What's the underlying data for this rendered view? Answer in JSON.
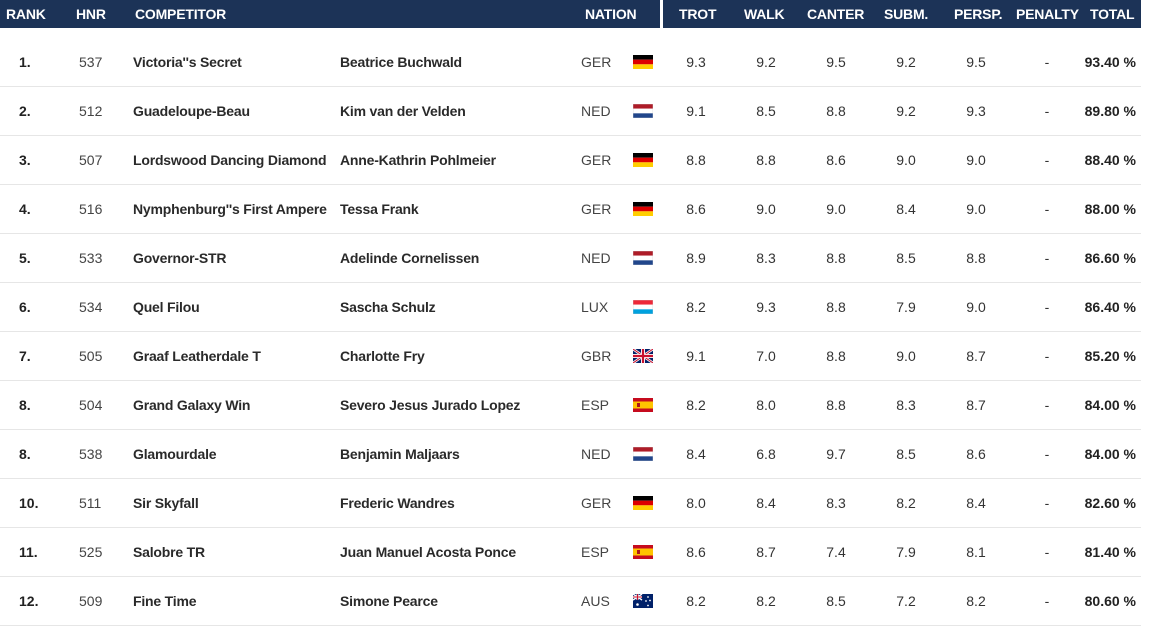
{
  "header": {
    "rank": "RANK",
    "hnr": "HNR",
    "competitor": "COMPETITOR",
    "nation": "NATION",
    "trot": "TROT",
    "walk": "WALK",
    "canter": "CANTER",
    "subm": "SUBM.",
    "persp": "PERSP.",
    "penalty": "PENALTY",
    "total": "TOTAL"
  },
  "colors": {
    "header_bg": "#1c3357",
    "row_border": "#e6e6e6"
  },
  "rows": [
    {
      "rank": "1.",
      "hnr": "537",
      "horse": "Victoria''s Secret",
      "rider": "Beatrice Buchwald",
      "nation": "GER",
      "flag": "germany-flag-icon",
      "trot": "9.3",
      "walk": "9.2",
      "canter": "9.5",
      "subm": "9.2",
      "persp": "9.5",
      "penalty": "-",
      "total": "93.40 %"
    },
    {
      "rank": "2.",
      "hnr": "512",
      "horse": "Guadeloupe-Beau",
      "rider": "Kim van der Velden",
      "nation": "NED",
      "flag": "netherlands-flag-icon",
      "trot": "9.1",
      "walk": "8.5",
      "canter": "8.8",
      "subm": "9.2",
      "persp": "9.3",
      "penalty": "-",
      "total": "89.80 %"
    },
    {
      "rank": "3.",
      "hnr": "507",
      "horse": "Lordswood Dancing Diamond",
      "rider": "Anne-Kathrin Pohlmeier",
      "nation": "GER",
      "flag": "germany-flag-icon",
      "trot": "8.8",
      "walk": "8.8",
      "canter": "8.6",
      "subm": "9.0",
      "persp": "9.0",
      "penalty": "-",
      "total": "88.40 %"
    },
    {
      "rank": "4.",
      "hnr": "516",
      "horse": "Nymphenburg''s First Ampere",
      "rider": "Tessa Frank",
      "nation": "GER",
      "flag": "germany-flag-icon",
      "trot": "8.6",
      "walk": "9.0",
      "canter": "9.0",
      "subm": "8.4",
      "persp": "9.0",
      "penalty": "-",
      "total": "88.00 %"
    },
    {
      "rank": "5.",
      "hnr": "533",
      "horse": "Governor-STR",
      "rider": "Adelinde Cornelissen",
      "nation": "NED",
      "flag": "netherlands-flag-icon",
      "trot": "8.9",
      "walk": "8.3",
      "canter": "8.8",
      "subm": "8.5",
      "persp": "8.8",
      "penalty": "-",
      "total": "86.60 %"
    },
    {
      "rank": "6.",
      "hnr": "534",
      "horse": "Quel Filou",
      "rider": "Sascha Schulz",
      "nation": "LUX",
      "flag": "luxembourg-flag-icon",
      "trot": "8.2",
      "walk": "9.3",
      "canter": "8.8",
      "subm": "7.9",
      "persp": "9.0",
      "penalty": "-",
      "total": "86.40 %"
    },
    {
      "rank": "7.",
      "hnr": "505",
      "horse": "Graaf Leatherdale T",
      "rider": "Charlotte Fry",
      "nation": "GBR",
      "flag": "uk-flag-icon",
      "trot": "9.1",
      "walk": "7.0",
      "canter": "8.8",
      "subm": "9.0",
      "persp": "8.7",
      "penalty": "-",
      "total": "85.20 %"
    },
    {
      "rank": "8.",
      "hnr": "504",
      "horse": "Grand Galaxy Win",
      "rider": "Severo Jesus Jurado Lopez",
      "nation": "ESP",
      "flag": "spain-flag-icon",
      "trot": "8.2",
      "walk": "8.0",
      "canter": "8.8",
      "subm": "8.3",
      "persp": "8.7",
      "penalty": "-",
      "total": "84.00 %"
    },
    {
      "rank": "8.",
      "hnr": "538",
      "horse": "Glamourdale",
      "rider": "Benjamin Maljaars",
      "nation": "NED",
      "flag": "netherlands-flag-icon",
      "trot": "8.4",
      "walk": "6.8",
      "canter": "9.7",
      "subm": "8.5",
      "persp": "8.6",
      "penalty": "-",
      "total": "84.00 %"
    },
    {
      "rank": "10.",
      "hnr": "511",
      "horse": "Sir Skyfall",
      "rider": "Frederic Wandres",
      "nation": "GER",
      "flag": "germany-flag-icon",
      "trot": "8.0",
      "walk": "8.4",
      "canter": "8.3",
      "subm": "8.2",
      "persp": "8.4",
      "penalty": "-",
      "total": "82.60 %"
    },
    {
      "rank": "11.",
      "hnr": "525",
      "horse": "Salobre TR",
      "rider": "Juan Manuel Acosta Ponce",
      "nation": "ESP",
      "flag": "spain-flag-icon",
      "trot": "8.6",
      "walk": "8.7",
      "canter": "7.4",
      "subm": "7.9",
      "persp": "8.1",
      "penalty": "-",
      "total": "81.40 %"
    },
    {
      "rank": "12.",
      "hnr": "509",
      "horse": "Fine Time",
      "rider": "Simone Pearce",
      "nation": "AUS",
      "flag": "australia-flag-icon",
      "trot": "8.2",
      "walk": "8.2",
      "canter": "8.5",
      "subm": "7.2",
      "persp": "8.2",
      "penalty": "-",
      "total": "80.60 %"
    }
  ]
}
